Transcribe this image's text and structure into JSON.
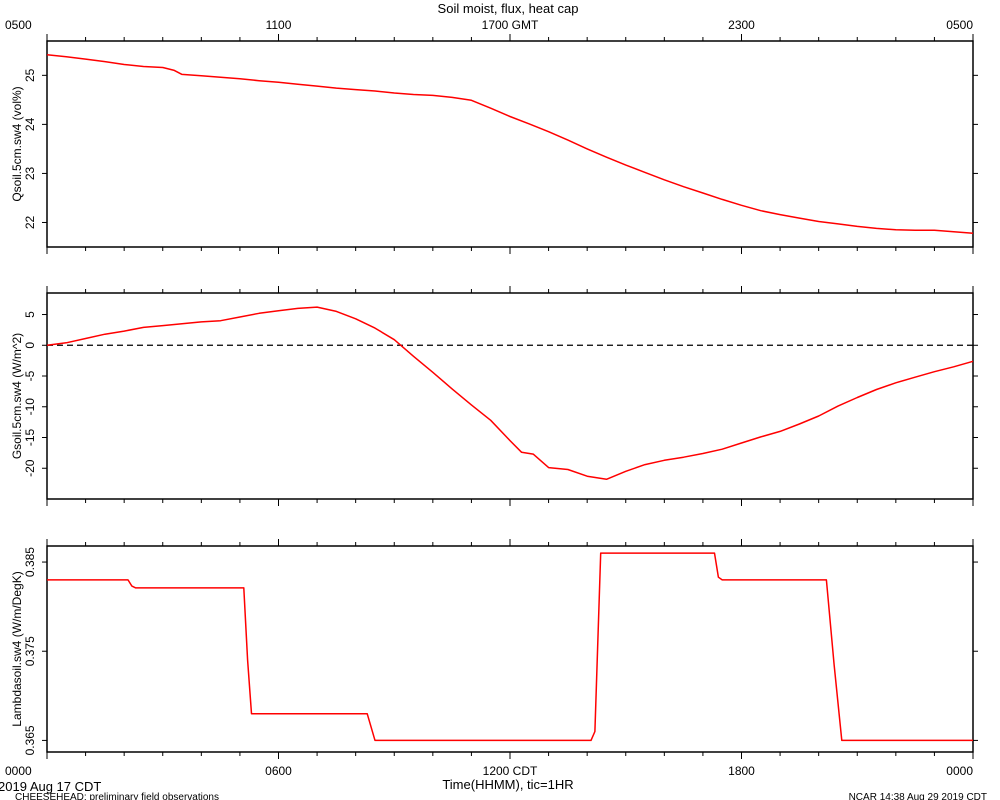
{
  "title": "Soil moist, flux, heat cap",
  "top_axis": {
    "unit_label": "GMT",
    "ticks": [
      {
        "hour": 0,
        "label": "0500"
      },
      {
        "hour": 6,
        "label": "1100"
      },
      {
        "hour": 12,
        "label": "1700 GMT"
      },
      {
        "hour": 18,
        "label": "2300"
      },
      {
        "hour": 24,
        "label": "0500"
      }
    ]
  },
  "bottom_axis": {
    "label": "Time(HHMM), tic=1HR",
    "ticks": [
      {
        "hour": 0,
        "label": "0000"
      },
      {
        "hour": 6,
        "label": "0600"
      },
      {
        "hour": 12,
        "label": "1200 CDT"
      },
      {
        "hour": 18,
        "label": "1800"
      },
      {
        "hour": 24,
        "label": "0000"
      }
    ]
  },
  "footer": {
    "date": "2019 Aug 17 CDT",
    "project": "CHEESEHEAD: preliminary field observations",
    "credit": "NCAR 14:38 Aug 29 2019 CDT"
  },
  "colors": {
    "series": "#ff0000",
    "axis": "#000000",
    "zero_line": "#000000"
  },
  "chart_data": [
    {
      "type": "line",
      "ylabel": "Qsoil.5cm.sw4 (vol%)",
      "ylim": [
        21.5,
        25.7
      ],
      "yticks": [
        {
          "v": 22,
          "label": "22"
        },
        {
          "v": 23,
          "label": "23"
        },
        {
          "v": 24,
          "label": "24"
        },
        {
          "v": 25,
          "label": "25"
        }
      ],
      "x": [
        0,
        0.5,
        1,
        1.5,
        2,
        2.5,
        3,
        3.3,
        3.5,
        4,
        4.5,
        5,
        5.5,
        6,
        6.5,
        7,
        7.5,
        8,
        8.5,
        9,
        9.5,
        10,
        10.5,
        11,
        11.5,
        12,
        12.5,
        13,
        13.5,
        14,
        14.5,
        15,
        15.5,
        16,
        16.5,
        17,
        17.5,
        18,
        18.5,
        19,
        19.5,
        20,
        20.5,
        21,
        21.5,
        22,
        22.5,
        23,
        23.5,
        24
      ],
      "series": [
        {
          "values": [
            25.42,
            25.38,
            25.33,
            25.28,
            25.22,
            25.18,
            25.16,
            25.1,
            25.02,
            24.99,
            24.96,
            24.93,
            24.89,
            24.86,
            24.82,
            24.78,
            24.74,
            24.71,
            24.68,
            24.64,
            24.61,
            24.59,
            24.55,
            24.49,
            24.33,
            24.16,
            24.01,
            23.85,
            23.68,
            23.5,
            23.33,
            23.17,
            23.02,
            22.87,
            22.73,
            22.6,
            22.47,
            22.35,
            22.24,
            22.16,
            22.09,
            22.02,
            21.97,
            21.92,
            21.88,
            21.85,
            21.84,
            21.84,
            21.81,
            21.78
          ]
        }
      ]
    },
    {
      "type": "line",
      "ylabel": "Gsoil.5cm.sw4 (W/m^2)",
      "ylim": [
        -25,
        8.5
      ],
      "zero_line": true,
      "yticks": [
        {
          "v": 5,
          "label": "5"
        },
        {
          "v": 0,
          "label": "0"
        },
        {
          "v": -5,
          "label": "-5"
        },
        {
          "v": -10,
          "label": "-10"
        },
        {
          "v": -15,
          "label": "-15"
        },
        {
          "v": -20,
          "label": "-20"
        }
      ],
      "x": [
        0,
        0.5,
        1,
        1.5,
        2,
        2.5,
        3,
        3.5,
        4,
        4.5,
        5,
        5.5,
        6,
        6.5,
        7,
        7.5,
        8,
        8.5,
        9,
        9.5,
        10,
        10.5,
        11,
        11.5,
        12,
        12.3,
        12.6,
        13,
        13.5,
        14,
        14.5,
        15,
        15.5,
        16,
        16.5,
        17,
        17.5,
        18,
        18.5,
        19,
        19.5,
        20,
        20.5,
        21,
        21.5,
        22,
        22.5,
        23,
        23.5,
        24
      ],
      "series": [
        {
          "values": [
            0,
            0.4,
            1.1,
            1.8,
            2.3,
            2.9,
            3.2,
            3.5,
            3.8,
            4.0,
            4.6,
            5.2,
            5.6,
            6.0,
            6.2,
            5.5,
            4.3,
            2.8,
            0.9,
            -1.8,
            -4.4,
            -7.1,
            -9.7,
            -12.2,
            -15.5,
            -17.4,
            -17.7,
            -19.9,
            -20.2,
            -21.3,
            -21.8,
            -20.5,
            -19.4,
            -18.7,
            -18.2,
            -17.6,
            -16.9,
            -15.9,
            -14.9,
            -14.0,
            -12.8,
            -11.5,
            -9.9,
            -8.5,
            -7.2,
            -6.1,
            -5.2,
            -4.3,
            -3.5,
            -2.6
          ]
        }
      ]
    },
    {
      "type": "line",
      "ylabel": "Lambdasoil.sw4 (W/m/DegK)",
      "ylim": [
        0.3637,
        0.3868
      ],
      "yticks": [
        {
          "v": 0.365,
          "label": "0.365"
        },
        {
          "v": 0.375,
          "label": "0.375"
        },
        {
          "v": 0.385,
          "label": "0.385"
        }
      ],
      "x": [
        0,
        2.1,
        2.2,
        2.3,
        5.1,
        5.2,
        5.3,
        8.3,
        8.5,
        14.1,
        14.2,
        14.35,
        17.3,
        17.4,
        17.5,
        20.2,
        20.4,
        20.6,
        24
      ],
      "series": [
        {
          "values": [
            0.383,
            0.383,
            0.3823,
            0.3821,
            0.3821,
            0.374,
            0.368,
            0.368,
            0.365,
            0.365,
            0.366,
            0.386,
            0.386,
            0.3833,
            0.383,
            0.383,
            0.3735,
            0.365,
            0.365
          ]
        }
      ]
    }
  ]
}
